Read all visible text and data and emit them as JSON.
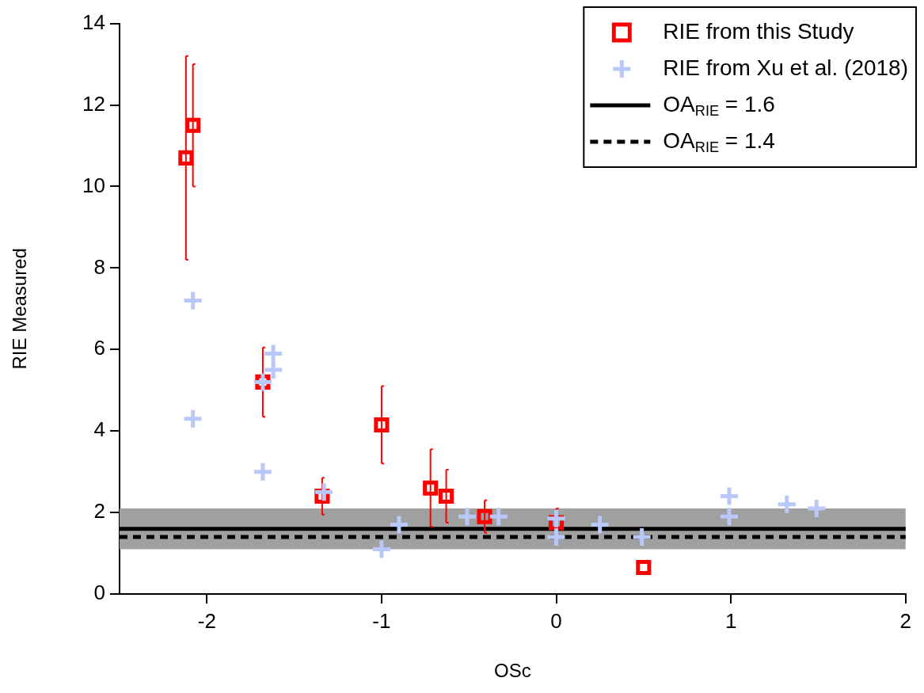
{
  "chart_data": {
    "type": "scatter",
    "xlabel": "OSc",
    "ylabel": "RIE Measured",
    "xlim": [
      -2.5,
      2
    ],
    "xticks": [
      -2,
      -1,
      0,
      1,
      2
    ],
    "ylim": [
      0,
      14
    ],
    "yticks": [
      0,
      2,
      4,
      6,
      8,
      10,
      12,
      14
    ],
    "grid": false,
    "legend": "top right",
    "series": [
      {
        "name": "RIE from this Study",
        "color": "#ff0000",
        "marker": "square",
        "x": [
          -2.12,
          -2.08,
          -1.68,
          -1.34,
          -1.0,
          -0.72,
          -0.63,
          -0.41,
          0.0,
          0.5
        ],
        "values": [
          10.7,
          11.5,
          5.2,
          2.4,
          4.15,
          2.6,
          2.4,
          1.9,
          1.75,
          0.65
        ],
        "errors": [
          2.5,
          1.5,
          0.85,
          0.45,
          0.95,
          0.95,
          0.65,
          0.4,
          0.35,
          null
        ]
      },
      {
        "name": "RIE from Xu et al. (2018)",
        "color": "#b8c8f8",
        "marker": "cross",
        "x": [
          -2.08,
          -2.08,
          -1.68,
          -1.62,
          -1.62,
          -1.68,
          -1.33,
          -1.0,
          -0.9,
          -0.51,
          -0.33,
          0.0,
          0.0,
          0.25,
          0.49,
          0.99,
          0.99,
          1.32,
          1.49
        ],
        "values": [
          7.2,
          4.3,
          3.0,
          5.9,
          5.5,
          5.2,
          2.5,
          1.1,
          1.7,
          1.9,
          1.9,
          1.4,
          1.85,
          1.7,
          1.4,
          2.4,
          1.9,
          2.2,
          2.1
        ]
      }
    ],
    "bands": [
      {
        "axis": "y",
        "from": 1.1,
        "to": 2.1,
        "color": "#a0a0a0"
      }
    ],
    "ref_lines": [
      {
        "axis": "y",
        "value": 1.6,
        "label": "OA$_{RIE}$ = 1.6",
        "color": "#000000",
        "line_style": "solid"
      },
      {
        "axis": "y",
        "value": 1.4,
        "label": "OA$_{RIE}$ = 1.4",
        "color": "#000000",
        "line_style": "dashed"
      }
    ]
  }
}
